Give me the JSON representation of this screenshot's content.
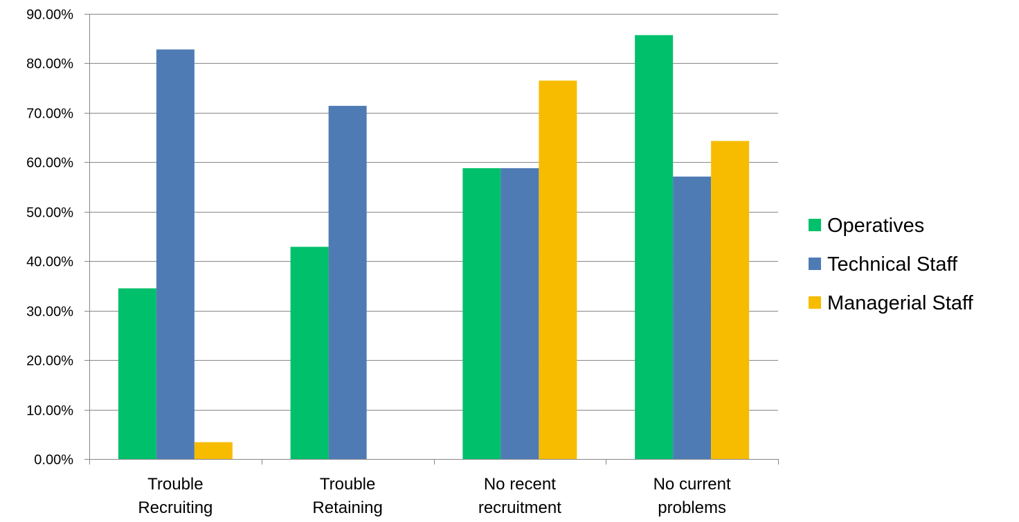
{
  "chart_data": {
    "type": "bar",
    "title": "",
    "xlabel": "",
    "ylabel": "",
    "categories": [
      [
        "Trouble",
        "Recruiting"
      ],
      [
        "Trouble",
        "Retaining"
      ],
      [
        "No recent",
        "recruitment"
      ],
      [
        "No current",
        "problems"
      ]
    ],
    "series": [
      {
        "name": "Operatives",
        "color": "#00C06B",
        "values": [
          34.5,
          42.9,
          58.8,
          85.7
        ]
      },
      {
        "name": "Technical Staff",
        "color": "#4F7BB5",
        "values": [
          82.8,
          71.4,
          58.8,
          57.1
        ]
      },
      {
        "name": "Managerial Staff",
        "color": "#F7BC00",
        "values": [
          3.4,
          0,
          76.5,
          64.3
        ]
      }
    ],
    "ylim": [
      0,
      90
    ],
    "ytick_step": 10,
    "ytick_format": "0.00%",
    "ytick_labels": [
      "0.00%",
      "10.00%",
      "20.00%",
      "30.00%",
      "40.00%",
      "50.00%",
      "60.00%",
      "70.00%",
      "80.00%",
      "90.00%"
    ],
    "grid": true,
    "gridline_color": "#868686",
    "legend_position": "right"
  }
}
